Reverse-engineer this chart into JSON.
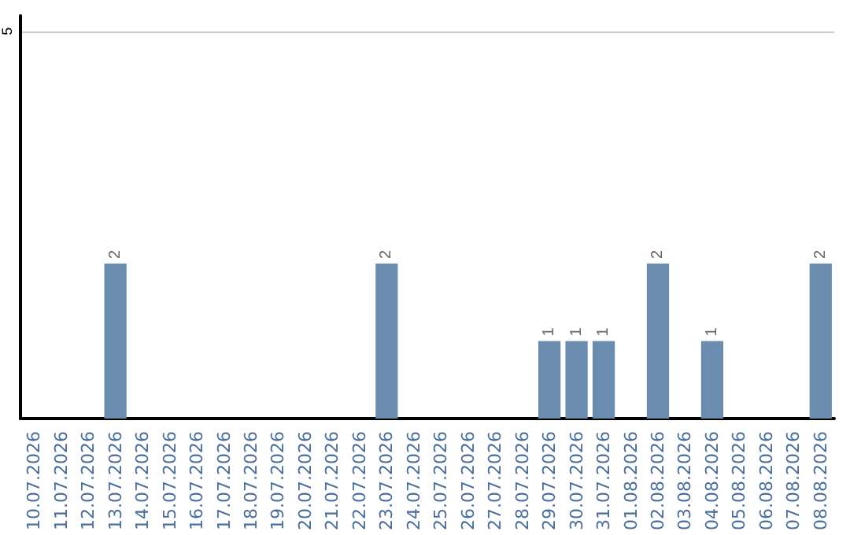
{
  "chart_data": {
    "type": "bar",
    "categories": [
      "10.07.2026",
      "11.07.2026",
      "12.07.2026",
      "13.07.2026",
      "14.07.2026",
      "15.07.2026",
      "16.07.2026",
      "17.07.2026",
      "18.07.2026",
      "19.07.2026",
      "20.07.2026",
      "21.07.2026",
      "22.07.2026",
      "23.07.2026",
      "24.07.2026",
      "25.07.2026",
      "26.07.2026",
      "27.07.2026",
      "28.07.2026",
      "29.07.2026",
      "30.07.2026",
      "31.07.2026",
      "01.08.2026",
      "02.08.2026",
      "03.08.2026",
      "04.08.2026",
      "05.08.2026",
      "06.08.2026",
      "07.08.2026",
      "08.08.2026"
    ],
    "values": [
      0,
      0,
      0,
      2,
      0,
      0,
      0,
      0,
      0,
      0,
      0,
      0,
      0,
      2,
      0,
      0,
      0,
      0,
      0,
      1,
      1,
      1,
      0,
      2,
      0,
      1,
      0,
      0,
      0,
      2
    ],
    "value_labels": [
      null,
      null,
      null,
      "2",
      null,
      null,
      null,
      null,
      null,
      null,
      null,
      null,
      null,
      "2",
      null,
      null,
      null,
      null,
      null,
      "1",
      "1",
      "1",
      null,
      "2",
      null,
      "1",
      null,
      null,
      null,
      "2"
    ],
    "color": "#6a8caf",
    "ylim": [
      0,
      5.2
    ],
    "yticks": [
      5
    ],
    "grid": "y"
  }
}
